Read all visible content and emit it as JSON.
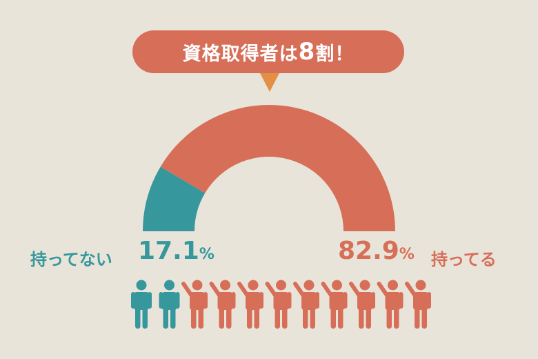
{
  "headline": {
    "prefix": "資格取得者は",
    "number": "8",
    "suffix": "割！"
  },
  "colors": {
    "background": "#e9e4da",
    "no": "#36979c",
    "yes": "#d76f58",
    "pointer": "#e38f45"
  },
  "left_label": {
    "text": "持ってない",
    "value": "17.1",
    "unit": "%"
  },
  "right_label": {
    "text": "持ってる",
    "value": "82.9",
    "unit": "%"
  },
  "people": {
    "total": 11,
    "no_count": 2,
    "icon_no": "person-standing-icon",
    "icon_yes": "person-waving-icon"
  },
  "chart_data": {
    "type": "pie",
    "shape": "semi-donut",
    "categories": [
      "持ってない",
      "持ってる"
    ],
    "values": [
      17.1,
      82.9
    ]
  }
}
